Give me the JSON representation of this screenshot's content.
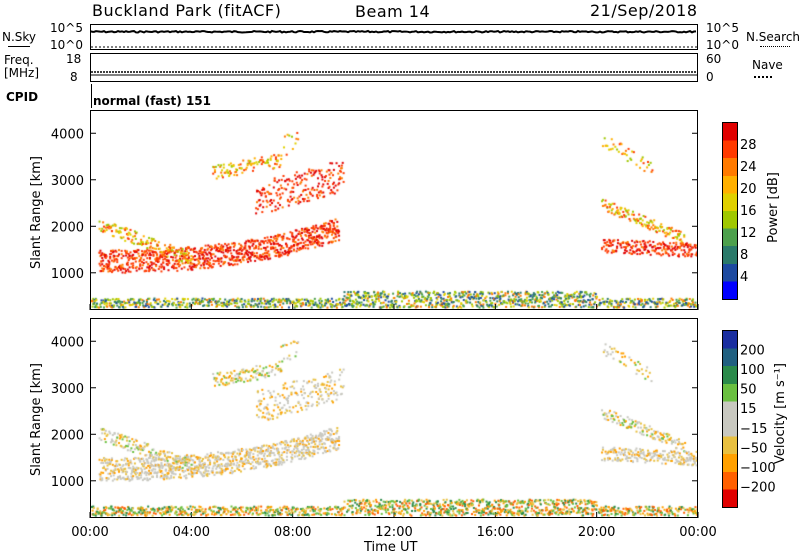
{
  "header": {
    "station": "Buckland Park (fitACF)",
    "beam": "Beam 14",
    "date": "21/Sep/2018"
  },
  "sky_panel": {
    "left_label": "N.Sky",
    "right_label": "N.Search",
    "left_ticks": [
      "10^5",
      "10^0"
    ],
    "right_ticks": [
      "10^5",
      "10^0"
    ]
  },
  "freq_panel": {
    "left_label_top": "Freq.",
    "left_label_unit": "[MHz]",
    "right_label": "Nave",
    "left_ticks": [
      "18",
      "8"
    ],
    "right_ticks": [
      "60",
      "0"
    ]
  },
  "cpid": {
    "label": "CPID",
    "value": "normal (fast) 151"
  },
  "chart_data": [
    {
      "type": "heatmap",
      "name": "power",
      "ylabel": "Slant Range [km]",
      "yticks": [
        "4000",
        "3000",
        "2000",
        "1000"
      ],
      "ylim": [
        200,
        4500
      ],
      "colorbar": {
        "label": "Power [dB]",
        "ticks": [
          "28",
          "24",
          "20",
          "16",
          "12",
          "8",
          "4"
        ],
        "colors": [
          "#e00000",
          "#ff3a00",
          "#ff7a00",
          "#ffb000",
          "#e0d000",
          "#a0c800",
          "#4ca04c",
          "#2a7a6a",
          "#1d4aa0",
          "#0000ff"
        ]
      }
    },
    {
      "type": "heatmap",
      "name": "velocity",
      "ylabel": "Slant Range [km]",
      "yticks": [
        "4000",
        "3000",
        "2000",
        "1000"
      ],
      "ylim": [
        200,
        4500
      ],
      "colorbar": {
        "label": "Velocity [m s⁻¹]",
        "ticks": [
          "200",
          "100",
          "50",
          "15",
          "−15",
          "−50",
          "−100",
          "−200"
        ],
        "colors": [
          "#1a2ea0",
          "#206080",
          "#2a8a4a",
          "#6ac040",
          "#c8c8c0",
          "#c8c8c0",
          "#e8c040",
          "#ffa000",
          "#ff6000",
          "#e00000"
        ]
      }
    }
  ],
  "xaxis": {
    "label": "Time UT",
    "ticks": [
      "00:00",
      "04:00",
      "08:00",
      "12:00",
      "16:00",
      "20:00",
      "00:00"
    ]
  }
}
